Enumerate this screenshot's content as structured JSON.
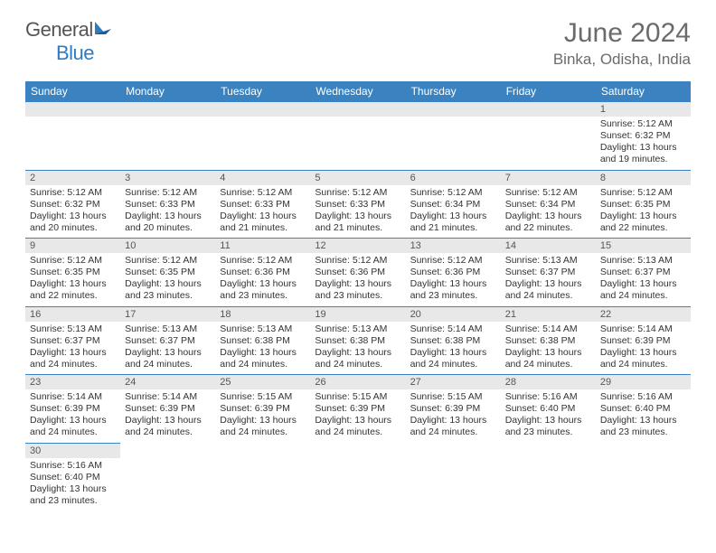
{
  "brand": {
    "name_part1": "General",
    "name_part2": "Blue"
  },
  "title": "June 2024",
  "location": "Binka, Odisha, India",
  "colors": {
    "header_bg": "#3b83c0",
    "header_text": "#ffffff",
    "daynum_bg": "#e8e8e8",
    "border": "#3b83c0",
    "text": "#333333",
    "brand_gray": "#555555",
    "brand_blue": "#2f7bbf"
  },
  "typography": {
    "title_fontsize": 30,
    "location_fontsize": 17,
    "weekday_fontsize": 12,
    "body_fontsize": 10.5
  },
  "layout": {
    "first_weekday": "Sunday",
    "columns": 7
  },
  "weekdays": [
    "Sunday",
    "Monday",
    "Tuesday",
    "Wednesday",
    "Thursday",
    "Friday",
    "Saturday"
  ],
  "days": [
    {
      "n": 1,
      "col": 6,
      "sunrise": "5:12 AM",
      "sunset": "6:32 PM",
      "daylight": "13 hours and 19 minutes."
    },
    {
      "n": 2,
      "col": 0,
      "sunrise": "5:12 AM",
      "sunset": "6:32 PM",
      "daylight": "13 hours and 20 minutes."
    },
    {
      "n": 3,
      "col": 1,
      "sunrise": "5:12 AM",
      "sunset": "6:33 PM",
      "daylight": "13 hours and 20 minutes."
    },
    {
      "n": 4,
      "col": 2,
      "sunrise": "5:12 AM",
      "sunset": "6:33 PM",
      "daylight": "13 hours and 21 minutes."
    },
    {
      "n": 5,
      "col": 3,
      "sunrise": "5:12 AM",
      "sunset": "6:33 PM",
      "daylight": "13 hours and 21 minutes."
    },
    {
      "n": 6,
      "col": 4,
      "sunrise": "5:12 AM",
      "sunset": "6:34 PM",
      "daylight": "13 hours and 21 minutes."
    },
    {
      "n": 7,
      "col": 5,
      "sunrise": "5:12 AM",
      "sunset": "6:34 PM",
      "daylight": "13 hours and 22 minutes."
    },
    {
      "n": 8,
      "col": 6,
      "sunrise": "5:12 AM",
      "sunset": "6:35 PM",
      "daylight": "13 hours and 22 minutes."
    },
    {
      "n": 9,
      "col": 0,
      "sunrise": "5:12 AM",
      "sunset": "6:35 PM",
      "daylight": "13 hours and 22 minutes."
    },
    {
      "n": 10,
      "col": 1,
      "sunrise": "5:12 AM",
      "sunset": "6:35 PM",
      "daylight": "13 hours and 23 minutes."
    },
    {
      "n": 11,
      "col": 2,
      "sunrise": "5:12 AM",
      "sunset": "6:36 PM",
      "daylight": "13 hours and 23 minutes."
    },
    {
      "n": 12,
      "col": 3,
      "sunrise": "5:12 AM",
      "sunset": "6:36 PM",
      "daylight": "13 hours and 23 minutes."
    },
    {
      "n": 13,
      "col": 4,
      "sunrise": "5:12 AM",
      "sunset": "6:36 PM",
      "daylight": "13 hours and 23 minutes."
    },
    {
      "n": 14,
      "col": 5,
      "sunrise": "5:13 AM",
      "sunset": "6:37 PM",
      "daylight": "13 hours and 24 minutes."
    },
    {
      "n": 15,
      "col": 6,
      "sunrise": "5:13 AM",
      "sunset": "6:37 PM",
      "daylight": "13 hours and 24 minutes."
    },
    {
      "n": 16,
      "col": 0,
      "sunrise": "5:13 AM",
      "sunset": "6:37 PM",
      "daylight": "13 hours and 24 minutes."
    },
    {
      "n": 17,
      "col": 1,
      "sunrise": "5:13 AM",
      "sunset": "6:37 PM",
      "daylight": "13 hours and 24 minutes."
    },
    {
      "n": 18,
      "col": 2,
      "sunrise": "5:13 AM",
      "sunset": "6:38 PM",
      "daylight": "13 hours and 24 minutes."
    },
    {
      "n": 19,
      "col": 3,
      "sunrise": "5:13 AM",
      "sunset": "6:38 PM",
      "daylight": "13 hours and 24 minutes."
    },
    {
      "n": 20,
      "col": 4,
      "sunrise": "5:14 AM",
      "sunset": "6:38 PM",
      "daylight": "13 hours and 24 minutes."
    },
    {
      "n": 21,
      "col": 5,
      "sunrise": "5:14 AM",
      "sunset": "6:38 PM",
      "daylight": "13 hours and 24 minutes."
    },
    {
      "n": 22,
      "col": 6,
      "sunrise": "5:14 AM",
      "sunset": "6:39 PM",
      "daylight": "13 hours and 24 minutes."
    },
    {
      "n": 23,
      "col": 0,
      "sunrise": "5:14 AM",
      "sunset": "6:39 PM",
      "daylight": "13 hours and 24 minutes."
    },
    {
      "n": 24,
      "col": 1,
      "sunrise": "5:14 AM",
      "sunset": "6:39 PM",
      "daylight": "13 hours and 24 minutes."
    },
    {
      "n": 25,
      "col": 2,
      "sunrise": "5:15 AM",
      "sunset": "6:39 PM",
      "daylight": "13 hours and 24 minutes."
    },
    {
      "n": 26,
      "col": 3,
      "sunrise": "5:15 AM",
      "sunset": "6:39 PM",
      "daylight": "13 hours and 24 minutes."
    },
    {
      "n": 27,
      "col": 4,
      "sunrise": "5:15 AM",
      "sunset": "6:39 PM",
      "daylight": "13 hours and 24 minutes."
    },
    {
      "n": 28,
      "col": 5,
      "sunrise": "5:16 AM",
      "sunset": "6:40 PM",
      "daylight": "13 hours and 23 minutes."
    },
    {
      "n": 29,
      "col": 6,
      "sunrise": "5:16 AM",
      "sunset": "6:40 PM",
      "daylight": "13 hours and 23 minutes."
    },
    {
      "n": 30,
      "col": 0,
      "sunrise": "5:16 AM",
      "sunset": "6:40 PM",
      "daylight": "13 hours and 23 minutes."
    }
  ],
  "labels": {
    "sunrise": "Sunrise:",
    "sunset": "Sunset:",
    "daylight": "Daylight:"
  }
}
